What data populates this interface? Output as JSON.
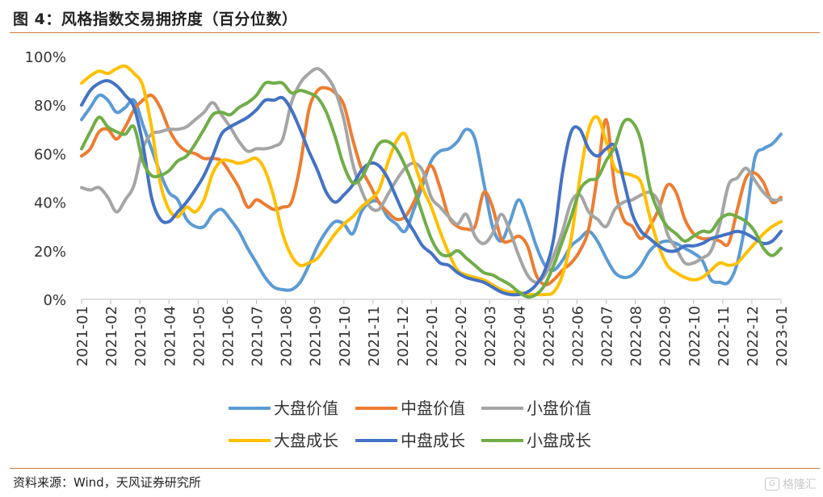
{
  "figure": {
    "title": "图 4：风格指数交易拥挤度（百分位数）",
    "source": "资料来源：Wind，天风证券研究所",
    "watermark": "格隆汇"
  },
  "chart_data": {
    "type": "line",
    "title": "",
    "xlabel": "",
    "ylabel": "",
    "ylim": [
      0,
      100
    ],
    "yticks": [
      "0%",
      "20%",
      "40%",
      "60%",
      "80%",
      "100%"
    ],
    "x_tick_labels": [
      "2021-01",
      "2021-02",
      "2021-03",
      "2021-04",
      "2021-05",
      "2021-06",
      "2021-07",
      "2021-08",
      "2021-09",
      "2021-10",
      "2021-11",
      "2021-12",
      "2022-01",
      "2022-02",
      "2022-03",
      "2022-04",
      "2022-05",
      "2022-06",
      "2022-07",
      "2022-08",
      "2022-09",
      "2022-10",
      "2022-11",
      "2022-12",
      "2023-01"
    ],
    "x_range": [
      0,
      24
    ],
    "grid": false,
    "legend_position": "bottom",
    "series": [
      {
        "name": "大盘价值",
        "color": "#5b9bd5",
        "x": [
          0,
          0.3,
          0.6,
          0.9,
          1.2,
          1.5,
          1.8,
          2.1,
          2.4,
          2.7,
          3.0,
          3.3,
          3.6,
          3.9,
          4.2,
          4.5,
          4.8,
          5.1,
          5.4,
          5.7,
          6.0,
          6.3,
          6.6,
          6.9,
          7.2,
          7.5,
          7.8,
          8.1,
          8.4,
          8.7,
          9.0,
          9.3,
          9.6,
          9.9,
          10.2,
          10.5,
          10.8,
          11.1,
          11.4,
          11.7,
          12.0,
          12.3,
          12.6,
          12.9,
          13.2,
          13.5,
          13.8,
          14.1,
          14.4,
          14.7,
          15.0,
          15.3,
          15.6,
          15.9,
          16.2,
          16.5,
          16.8,
          17.1,
          17.4,
          17.7,
          18.0,
          18.3,
          18.6,
          18.9,
          19.2,
          19.5,
          19.8,
          20.1,
          20.4,
          20.7,
          21.0,
          21.3,
          21.6,
          21.9,
          22.2,
          22.5,
          22.8,
          23.1,
          23.4,
          23.7,
          24.0
        ],
        "y": [
          74,
          79,
          84,
          82,
          77,
          79,
          82,
          72,
          62,
          52,
          44,
          41,
          33,
          30,
          30,
          35,
          37,
          33,
          28,
          21,
          15,
          9,
          5,
          4,
          4,
          7,
          14,
          22,
          28,
          32,
          31,
          27,
          36,
          40,
          40,
          34,
          31,
          28,
          37,
          47,
          57,
          61,
          62,
          65,
          70,
          66,
          48,
          30,
          24,
          32,
          41,
          33,
          22,
          14,
          12,
          16,
          22,
          25,
          28,
          24,
          17,
          11,
          9,
          10,
          14,
          20,
          23,
          24,
          23,
          21,
          19,
          16,
          8,
          7,
          7,
          15,
          33,
          58,
          62,
          64,
          68
        ]
      },
      {
        "name": "中盘价值",
        "color": "#ed7d31",
        "x": [
          0,
          0.3,
          0.6,
          0.9,
          1.2,
          1.5,
          1.8,
          2.1,
          2.4,
          2.7,
          3.0,
          3.3,
          3.6,
          3.9,
          4.2,
          4.5,
          4.8,
          5.1,
          5.4,
          5.7,
          6.0,
          6.3,
          6.6,
          6.9,
          7.2,
          7.5,
          7.8,
          8.1,
          8.4,
          8.7,
          9.0,
          9.3,
          9.6,
          9.9,
          10.2,
          10.5,
          10.8,
          11.1,
          11.4,
          11.7,
          12.0,
          12.3,
          12.6,
          12.9,
          13.2,
          13.5,
          13.8,
          14.1,
          14.4,
          14.7,
          15.0,
          15.3,
          15.6,
          15.9,
          16.2,
          16.5,
          16.8,
          17.1,
          17.4,
          17.7,
          18.0,
          18.3,
          18.6,
          18.9,
          19.2,
          19.5,
          19.8,
          20.1,
          20.4,
          20.7,
          21.0,
          21.3,
          21.6,
          21.9,
          22.2,
          22.5,
          22.8,
          23.1,
          23.4,
          23.7,
          24.0
        ],
        "y": [
          59,
          62,
          69,
          70,
          66,
          71,
          78,
          82,
          84,
          79,
          70,
          64,
          61,
          60,
          58,
          58,
          57,
          52,
          46,
          38,
          41,
          39,
          37,
          38,
          40,
          55,
          78,
          86,
          87,
          85,
          80,
          66,
          54,
          47,
          40,
          36,
          33,
          34,
          40,
          49,
          55,
          46,
          34,
          30,
          29,
          30,
          44,
          38,
          25,
          24,
          26,
          22,
          10,
          6,
          8,
          12,
          15,
          20,
          29,
          51,
          74,
          46,
          33,
          30,
          25,
          30,
          37,
          47,
          44,
          33,
          27,
          25,
          25,
          24,
          23,
          37,
          50,
          52,
          48,
          40,
          42
        ]
      },
      {
        "name": "小盘价值",
        "color": "#a5a5a5",
        "x": [
          0,
          0.3,
          0.6,
          0.9,
          1.2,
          1.5,
          1.8,
          2.1,
          2.4,
          2.7,
          3.0,
          3.3,
          3.6,
          3.9,
          4.2,
          4.5,
          4.8,
          5.1,
          5.4,
          5.7,
          6.0,
          6.3,
          6.6,
          6.9,
          7.2,
          7.5,
          7.8,
          8.1,
          8.4,
          8.7,
          9.0,
          9.3,
          9.6,
          9.9,
          10.2,
          10.5,
          10.8,
          11.1,
          11.4,
          11.7,
          12.0,
          12.3,
          12.6,
          12.9,
          13.2,
          13.5,
          13.8,
          14.1,
          14.4,
          14.7,
          15.0,
          15.3,
          15.6,
          15.9,
          16.2,
          16.5,
          16.8,
          17.1,
          17.4,
          17.7,
          18.0,
          18.3,
          18.6,
          18.9,
          19.2,
          19.5,
          19.8,
          20.1,
          20.4,
          20.7,
          21.0,
          21.3,
          21.6,
          21.9,
          22.2,
          22.5,
          22.8,
          23.1,
          23.4,
          23.7,
          24.0
        ],
        "y": [
          46,
          45,
          46,
          42,
          36,
          41,
          47,
          62,
          68,
          69,
          70,
          70,
          71,
          74,
          77,
          81,
          76,
          71,
          65,
          61,
          62,
          62,
          63,
          66,
          81,
          89,
          93,
          95,
          92,
          86,
          74,
          56,
          45,
          38,
          37,
          43,
          49,
          54,
          56,
          53,
          42,
          38,
          34,
          31,
          35,
          26,
          23,
          27,
          35,
          28,
          18,
          10,
          7,
          10,
          18,
          28,
          40,
          43,
          36,
          33,
          30,
          37,
          40,
          41,
          43,
          44,
          40,
          27,
          21,
          15,
          15,
          17,
          20,
          31,
          47,
          50,
          54,
          49,
          44,
          41,
          41
        ]
      },
      {
        "name": "大盘成长",
        "color": "#ffc000",
        "x": [
          0,
          0.3,
          0.6,
          0.9,
          1.2,
          1.5,
          1.8,
          2.1,
          2.4,
          2.7,
          3.0,
          3.3,
          3.6,
          3.9,
          4.2,
          4.5,
          4.8,
          5.1,
          5.4,
          5.7,
          6.0,
          6.3,
          6.6,
          6.9,
          7.2,
          7.5,
          7.8,
          8.1,
          8.4,
          8.7,
          9.0,
          9.3,
          9.6,
          9.9,
          10.2,
          10.5,
          10.8,
          11.1,
          11.4,
          11.7,
          12.0,
          12.3,
          12.6,
          12.9,
          13.2,
          13.5,
          13.8,
          14.1,
          14.4,
          14.7,
          15.0,
          15.3,
          15.6,
          15.9,
          16.2,
          16.5,
          16.8,
          17.1,
          17.4,
          17.7,
          18.0,
          18.3,
          18.6,
          18.9,
          19.2,
          19.5,
          19.8,
          20.1,
          20.4,
          20.7,
          21.0,
          21.3,
          21.6,
          21.9,
          22.2,
          22.5,
          22.8,
          23.1,
          23.4,
          23.7,
          24.0
        ],
        "y": [
          89,
          92,
          94,
          93,
          95,
          96,
          93,
          88,
          71,
          48,
          37,
          34,
          38,
          36,
          41,
          52,
          57,
          57,
          56,
          57,
          58,
          53,
          42,
          27,
          18,
          14,
          15,
          17,
          22,
          27,
          31,
          34,
          38,
          41,
          45,
          56,
          65,
          68,
          57,
          46,
          38,
          28,
          19,
          12,
          10,
          9,
          8,
          6,
          4,
          3,
          3,
          2,
          2,
          2,
          3,
          10,
          25,
          50,
          70,
          75,
          65,
          54,
          52,
          51,
          48,
          34,
          22,
          14,
          11,
          9,
          8,
          9,
          12,
          15,
          14,
          15,
          19,
          23,
          27,
          30,
          32
        ]
      },
      {
        "name": "中盘成长",
        "color": "#4472c4",
        "x": [
          0,
          0.3,
          0.6,
          0.9,
          1.2,
          1.5,
          1.8,
          2.1,
          2.4,
          2.7,
          3.0,
          3.3,
          3.6,
          3.9,
          4.2,
          4.5,
          4.8,
          5.1,
          5.4,
          5.7,
          6.0,
          6.3,
          6.6,
          6.9,
          7.2,
          7.5,
          7.8,
          8.1,
          8.4,
          8.7,
          9.0,
          9.3,
          9.6,
          9.9,
          10.2,
          10.5,
          10.8,
          11.1,
          11.4,
          11.7,
          12.0,
          12.3,
          12.6,
          12.9,
          13.2,
          13.5,
          13.8,
          14.1,
          14.4,
          14.7,
          15.0,
          15.3,
          15.6,
          15.9,
          16.2,
          16.5,
          16.8,
          17.1,
          17.4,
          17.7,
          18.0,
          18.3,
          18.6,
          18.9,
          19.2,
          19.5,
          19.8,
          20.1,
          20.4,
          20.7,
          21.0,
          21.3,
          21.6,
          21.9,
          22.2,
          22.5,
          22.8,
          23.1,
          23.4,
          23.7,
          24.0
        ],
        "y": [
          80,
          86,
          89,
          90,
          88,
          84,
          79,
          64,
          42,
          33,
          32,
          36,
          40,
          45,
          51,
          59,
          68,
          71,
          73,
          75,
          78,
          82,
          82,
          83,
          78,
          70,
          61,
          53,
          44,
          40,
          43,
          47,
          53,
          56,
          55,
          50,
          42,
          34,
          28,
          22,
          19,
          15,
          14,
          11,
          9,
          8,
          7,
          5,
          3,
          2,
          2,
          3,
          6,
          12,
          25,
          52,
          69,
          70,
          62,
          59,
          62,
          63,
          49,
          35,
          28,
          25,
          22,
          20,
          20,
          22,
          22,
          23,
          25,
          26,
          27,
          28,
          27,
          25,
          23,
          24,
          28
        ]
      },
      {
        "name": "小盘成长",
        "color": "#70ad47",
        "x": [
          0,
          0.3,
          0.6,
          0.9,
          1.2,
          1.5,
          1.8,
          2.1,
          2.4,
          2.7,
          3.0,
          3.3,
          3.6,
          3.9,
          4.2,
          4.5,
          4.8,
          5.1,
          5.4,
          5.7,
          6.0,
          6.3,
          6.6,
          6.9,
          7.2,
          7.5,
          7.8,
          8.1,
          8.4,
          8.7,
          9.0,
          9.3,
          9.6,
          9.9,
          10.2,
          10.5,
          10.8,
          11.1,
          11.4,
          11.7,
          12.0,
          12.3,
          12.6,
          12.9,
          13.2,
          13.5,
          13.8,
          14.1,
          14.4,
          14.7,
          15.0,
          15.3,
          15.6,
          15.9,
          16.2,
          16.5,
          16.8,
          17.1,
          17.4,
          17.7,
          18.0,
          18.3,
          18.6,
          18.9,
          19.2,
          19.5,
          19.8,
          20.1,
          20.4,
          20.7,
          21.0,
          21.3,
          21.6,
          21.9,
          22.2,
          22.5,
          22.8,
          23.1,
          23.4,
          23.7,
          24.0
        ],
        "y": [
          62,
          69,
          75,
          71,
          69,
          68,
          71,
          57,
          51,
          51,
          53,
          57,
          59,
          64,
          70,
          76,
          77,
          76,
          79,
          81,
          84,
          89,
          89,
          89,
          85,
          86,
          85,
          83,
          77,
          67,
          55,
          48,
          50,
          57,
          64,
          65,
          62,
          55,
          46,
          35,
          25,
          19,
          18,
          20,
          17,
          14,
          11,
          10,
          8,
          6,
          3,
          1,
          2,
          6,
          14,
          24,
          34,
          45,
          49,
          50,
          57,
          63,
          73,
          73,
          65,
          46,
          36,
          30,
          27,
          24,
          26,
          28,
          28,
          33,
          35,
          34,
          32,
          28,
          21,
          18,
          21
        ]
      }
    ]
  },
  "legend": {
    "items": [
      "大盘价值",
      "中盘价值",
      "小盘价值",
      "大盘成长",
      "中盘成长",
      "小盘成长"
    ]
  }
}
